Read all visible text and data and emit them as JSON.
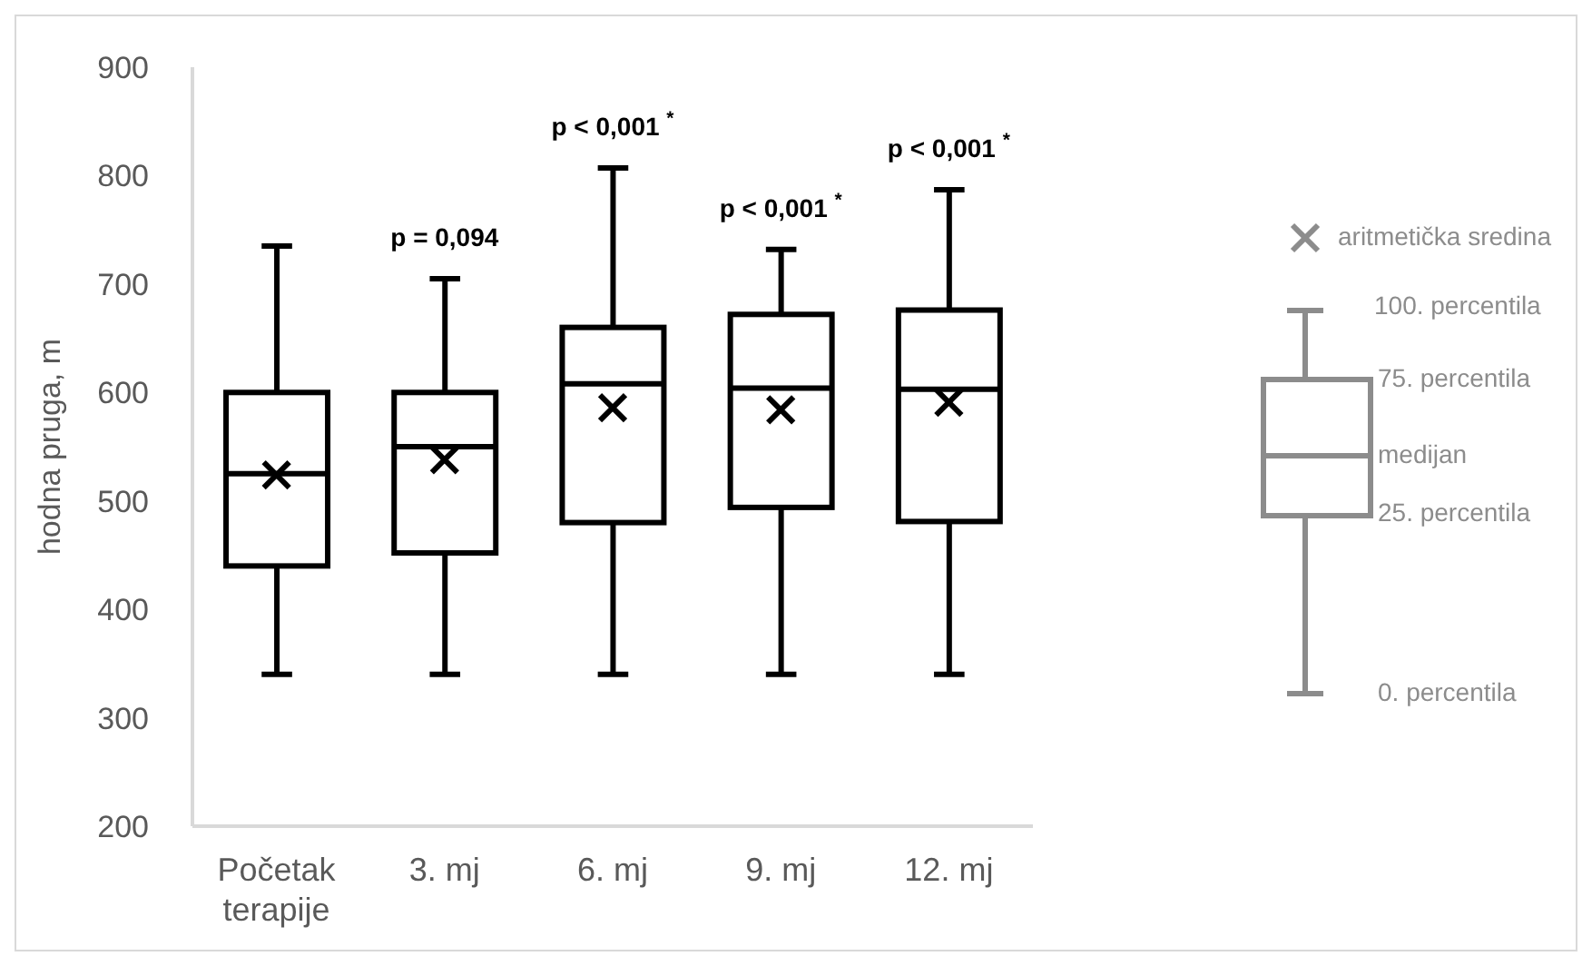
{
  "chart_data": {
    "type": "box",
    "ylabel": "hodna pruga, m",
    "categories": [
      "Početak terapije",
      "3. mj",
      "6. mj",
      "9. mj",
      "12. mj"
    ],
    "boxes": [
      {
        "low": 340,
        "q1": 440,
        "median": 525,
        "q3": 600,
        "high": 735,
        "mean": 524
      },
      {
        "low": 340,
        "q1": 452,
        "median": 550,
        "q3": 600,
        "high": 705,
        "mean": 538
      },
      {
        "low": 340,
        "q1": 480,
        "median": 608,
        "q3": 660,
        "high": 807,
        "mean": 586
      },
      {
        "low": 340,
        "q1": 494,
        "median": 604,
        "q3": 672,
        "high": 732,
        "mean": 584
      },
      {
        "low": 340,
        "q1": 481,
        "median": 603,
        "q3": 676,
        "high": 787,
        "mean": 591
      }
    ],
    "color": "#000000",
    "ylim": [
      200,
      900
    ],
    "yticks": [
      200,
      300,
      400,
      500,
      600,
      700,
      800,
      900
    ],
    "marker": "cross",
    "annotations": [
      "p = 0,094",
      "p < 0,001 $^{*}$",
      "p < 0,001 $^{*}$",
      "p < 0,001 $^{*}$",
      "aritmetička sredina",
      "100. percentila",
      "75. percentila",
      "medijan",
      "25. percentila",
      "0. percentila"
    ]
  }
}
